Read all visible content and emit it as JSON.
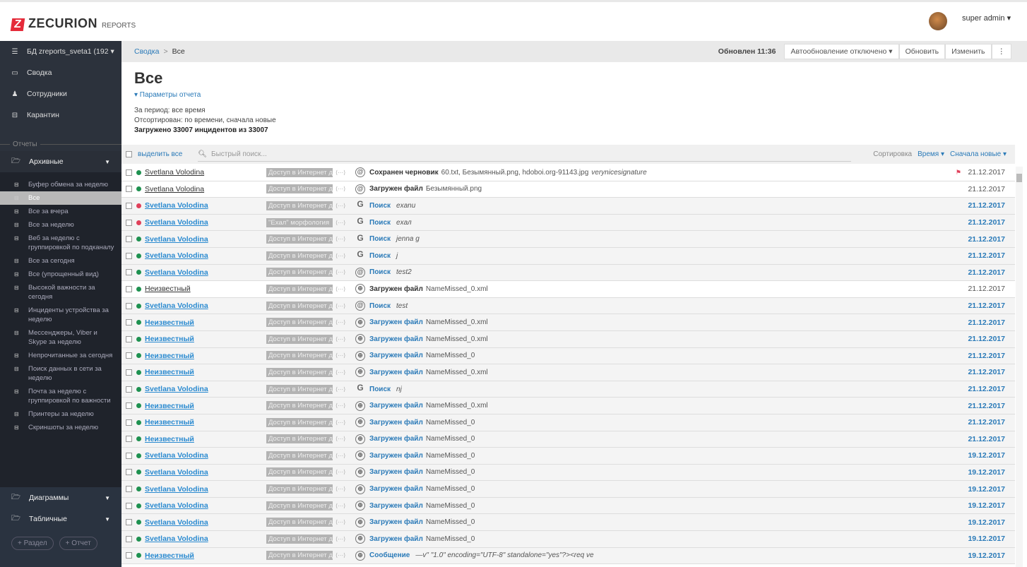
{
  "header": {
    "brand": "ZECURION",
    "brand_sub": "REPORTS",
    "user": "super admin ▾"
  },
  "sidebar": {
    "db": "БД zreports_sveta1 (192 ▾",
    "nav": [
      {
        "label": "Сводка",
        "icon": "laptop-icon"
      },
      {
        "label": "Сотрудники",
        "icon": "user-icon"
      },
      {
        "label": "Карантин",
        "icon": "inbox-icon"
      }
    ],
    "section": "Отчеты",
    "folder_archive": "Архивные",
    "reports": [
      "Буфер обмена за неделю",
      "Все",
      "Все за вчера",
      "Все за неделю",
      "Веб за неделю с группировкой по подканалу",
      "Все за сегодня",
      "Все (упрощенный вид)",
      "Высокой важности за сегодня",
      "Инциденты устройства за неделю",
      "Мессенджеры, Viber и Skype за неделю",
      "Непрочитанные за сегодня",
      "Поиск данных в сети за неделю",
      "Почта за неделю с группировкой по важности",
      "Принтеры за неделю",
      "Скриншоты за неделю"
    ],
    "active_report": 1,
    "folder_charts": "Диаграммы",
    "folder_tables": "Табличные",
    "btn_section": "+ Раздел",
    "btn_report": "+ Отчет"
  },
  "breadcrumb": {
    "root": "Сводка",
    "sep": ">",
    "current": "Все"
  },
  "toolbar": {
    "updated": "Обновлен 11:36",
    "autoupdate": "Автообновление отключено ▾",
    "refresh": "Обновить",
    "edit": "Изменить",
    "more": "⋮"
  },
  "page": {
    "title": "Все",
    "params": "▾ Параметры отчета",
    "period": "За период: все время",
    "sorted": "Отсортирован: по времени, сначала новые",
    "loaded": "Загружено 33007 инцидентов из 33007"
  },
  "filter": {
    "select_all": "выделить все",
    "search_placeholder": "Быстрый поиск...",
    "sort_label": "Сортировка",
    "sort_field": "Время ▾",
    "sort_order": "Сначала новые ▾"
  },
  "colors": {
    "green": "#1e9150",
    "red": "#e0405a",
    "link": "#2a7ab8"
  },
  "rows": [
    {
      "user": "Svetlana Volodina",
      "status": "green",
      "read": true,
      "tag": "Доступ в Интернет дл",
      "icon": "at",
      "action": "Сохранен черновик",
      "detail": "60.txt, Безымянный.png, hdoboi.org-91143.jpg",
      "detail_i": "verynicesignature",
      "flag": true,
      "date": "21.12.2017"
    },
    {
      "user": "Svetlana Volodina",
      "status": "green",
      "read": true,
      "tag": "Доступ в Интернет дл",
      "icon": "at",
      "action": "Загружен файл",
      "detail": "Безымянный.png",
      "detail_i": "",
      "date": "21.12.2017"
    },
    {
      "user": "Svetlana Volodina",
      "status": "red",
      "read": false,
      "tag": "Доступ в Интернет дл",
      "icon": "google",
      "action": "Поиск",
      "detail": "",
      "detail_i": "exanu",
      "date": "21.12.2017"
    },
    {
      "user": "Svetlana Volodina",
      "status": "red",
      "read": false,
      "tag": "\"Exал\" морфология",
      "icon": "google",
      "action": "Поиск",
      "detail": "",
      "detail_i": "exал",
      "date": "21.12.2017"
    },
    {
      "user": "Svetlana Volodina",
      "status": "green",
      "read": false,
      "tag": "Доступ в Интернет дл",
      "icon": "google",
      "action": "Поиск",
      "detail": "",
      "detail_i": "jenna g",
      "date": "21.12.2017"
    },
    {
      "user": "Svetlana Volodina",
      "status": "green",
      "read": false,
      "tag": "Доступ в Интернет дл",
      "icon": "google",
      "action": "Поиск",
      "detail": "",
      "detail_i": "j",
      "date": "21.12.2017"
    },
    {
      "user": "Svetlana Volodina",
      "status": "green",
      "read": false,
      "tag": "Доступ в Интернет дл",
      "icon": "at",
      "action": "Поиск",
      "detail": "",
      "detail_i": "test2",
      "date": "21.12.2017"
    },
    {
      "user": "Неизвестный",
      "status": "green",
      "read": true,
      "tag": "Доступ в Интернет дл",
      "icon": "globe",
      "action": "Загружен файл",
      "detail": "NameMissed_0.xml",
      "detail_i": "",
      "date": "21.12.2017"
    },
    {
      "user": "Svetlana Volodina",
      "status": "green",
      "read": false,
      "tag": "Доступ в Интернет дл",
      "icon": "at",
      "action": "Поиск",
      "detail": "",
      "detail_i": "test",
      "date": "21.12.2017"
    },
    {
      "user": "Неизвестный",
      "status": "green",
      "read": false,
      "tag": "Доступ в Интернет дл",
      "icon": "globe",
      "action": "Загружен файл",
      "detail": "NameMissed_0.xml",
      "detail_i": "",
      "date": "21.12.2017"
    },
    {
      "user": "Неизвестный",
      "status": "green",
      "read": false,
      "tag": "Доступ в Интернет дл",
      "icon": "globe",
      "action": "Загружен файл",
      "detail": "NameMissed_0.xml",
      "detail_i": "",
      "date": "21.12.2017"
    },
    {
      "user": "Неизвестный",
      "status": "green",
      "read": false,
      "tag": "Доступ в Интернет дл",
      "icon": "globe",
      "action": "Загружен файл",
      "detail": "NameMissed_0",
      "detail_i": "",
      "date": "21.12.2017"
    },
    {
      "user": "Неизвестный",
      "status": "green",
      "read": false,
      "tag": "Доступ в Интернет дл",
      "icon": "globe",
      "action": "Загружен файл",
      "detail": "NameMissed_0.xml",
      "detail_i": "",
      "date": "21.12.2017"
    },
    {
      "user": "Svetlana Volodina",
      "status": "green",
      "read": false,
      "tag": "Доступ в Интернет дл",
      "icon": "google",
      "action": "Поиск",
      "detail": "",
      "detail_i": "nj",
      "date": "21.12.2017"
    },
    {
      "user": "Неизвестный",
      "status": "green",
      "read": false,
      "tag": "Доступ в Интернет дл",
      "icon": "globe",
      "action": "Загружен файл",
      "detail": "NameMissed_0.xml",
      "detail_i": "",
      "date": "21.12.2017"
    },
    {
      "user": "Неизвестный",
      "status": "green",
      "read": false,
      "tag": "Доступ в Интернет дл",
      "icon": "globe",
      "action": "Загружен файл",
      "detail": "NameMissed_0",
      "detail_i": "",
      "date": "21.12.2017"
    },
    {
      "user": "Неизвестный",
      "status": "green",
      "read": false,
      "tag": "Доступ в Интернет дл",
      "icon": "globe",
      "action": "Загружен файл",
      "detail": "NameMissed_0",
      "detail_i": "",
      "date": "21.12.2017"
    },
    {
      "user": "Svetlana Volodina",
      "status": "green",
      "read": false,
      "tag": "Доступ в Интернет дл",
      "icon": "globe",
      "action": "Загружен файл",
      "detail": "NameMissed_0",
      "detail_i": "",
      "date": "19.12.2017"
    },
    {
      "user": "Svetlana Volodina",
      "status": "green",
      "read": false,
      "tag": "Доступ в Интернет дл",
      "icon": "globe",
      "action": "Загружен файл",
      "detail": "NameMissed_0",
      "detail_i": "",
      "date": "19.12.2017"
    },
    {
      "user": "Svetlana Volodina",
      "status": "green",
      "read": false,
      "tag": "Доступ в Интернет дл",
      "icon": "globe",
      "action": "Загружен файл",
      "detail": "NameMissed_0",
      "detail_i": "",
      "date": "19.12.2017"
    },
    {
      "user": "Svetlana Volodina",
      "status": "green",
      "read": false,
      "tag": "Доступ в Интернет дл",
      "icon": "globe",
      "action": "Загружен файл",
      "detail": "NameMissed_0",
      "detail_i": "",
      "date": "19.12.2017"
    },
    {
      "user": "Svetlana Volodina",
      "status": "green",
      "read": false,
      "tag": "Доступ в Интернет дл",
      "icon": "globe",
      "action": "Загружен файл",
      "detail": "NameMissed_0",
      "detail_i": "",
      "date": "19.12.2017"
    },
    {
      "user": "Svetlana Volodina",
      "status": "green",
      "read": false,
      "tag": "Доступ в Интернет дл",
      "icon": "globe",
      "action": "Загружен файл",
      "detail": "NameMissed_0",
      "detail_i": "",
      "date": "19.12.2017"
    },
    {
      "user": "Неизвестный",
      "status": "green",
      "read": false,
      "tag": "Доступ в Интернет дл",
      "icon": "globe",
      "action": "Сообщение",
      "detail": "",
      "detail_i": "—v\" \"1.0\" encoding=\"UTF-8\" standalone=\"yes\"?><req ve",
      "date": "19.12.2017"
    }
  ]
}
